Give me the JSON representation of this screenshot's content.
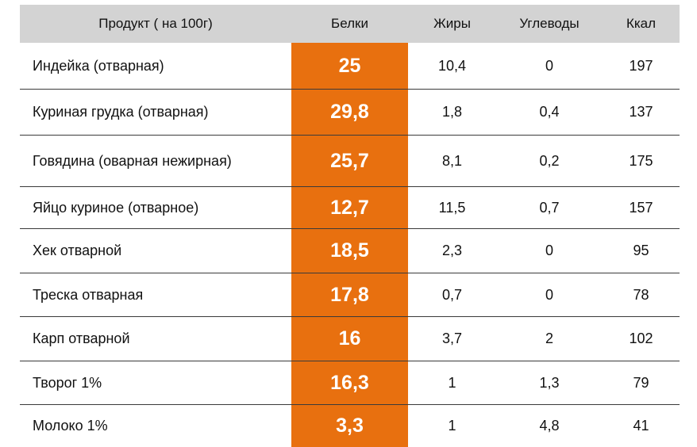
{
  "table": {
    "headers": {
      "product": "Продукт ( на 100г)",
      "protein": "Белки",
      "fat": "Жиры",
      "carbs": "Углеводы",
      "kcal": "Ккал"
    },
    "rows": [
      {
        "product": "Индейка (отварная)",
        "protein": "25",
        "fat": "10,4",
        "carbs": "0",
        "kcal": "197"
      },
      {
        "product": "Куриная грудка (отварная)",
        "protein": "29,8",
        "fat": "1,8",
        "carbs": "0,4",
        "kcal": "137"
      },
      {
        "product": "Говядина (оварная нежирная)",
        "protein": "25,7",
        "fat": "8,1",
        "carbs": "0,2",
        "kcal": "175"
      },
      {
        "product": "Яйцо куриное (отварное)",
        "protein": "12,7",
        "fat": "11,5",
        "carbs": "0,7",
        "kcal": "157"
      },
      {
        "product": "Хек отварной",
        "protein": "18,5",
        "fat": "2,3",
        "carbs": "0",
        "kcal": "95"
      },
      {
        "product": "Треска отварная",
        "protein": "17,8",
        "fat": "0,7",
        "carbs": "0",
        "kcal": "78"
      },
      {
        "product": "Карп отварной",
        "protein": "16",
        "fat": "3,7",
        "carbs": "2",
        "kcal": "102"
      },
      {
        "product": "Творог 1%",
        "protein": "16,3",
        "fat": "1",
        "carbs": "1,3",
        "kcal": "79"
      },
      {
        "product": "Молоко 1%",
        "protein": "3,3",
        "fat": "1",
        "carbs": "4,8",
        "kcal": "41"
      }
    ],
    "colors": {
      "header_bg": "#d3d3d3",
      "protein_highlight": "#e8700f"
    }
  }
}
